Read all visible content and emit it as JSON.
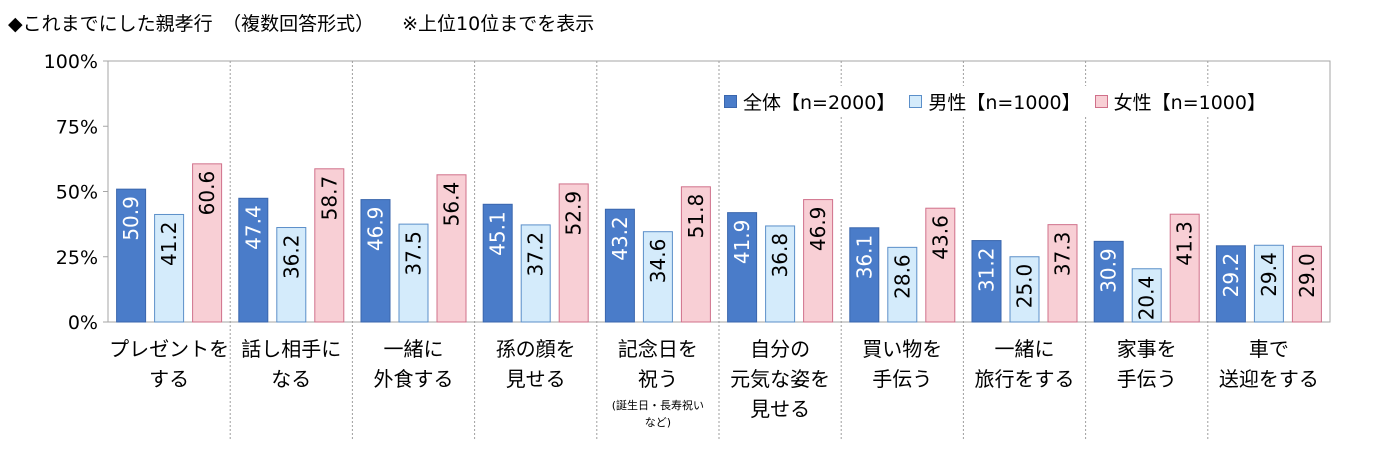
{
  "title": "◆これまでにした親孝行　（複数回答形式）",
  "note": "※上位10位までを表示",
  "chart_data": {
    "type": "bar",
    "categories": [
      [
        "プレゼントを",
        "する"
      ],
      [
        "話し相手に",
        "なる"
      ],
      [
        "一緒に",
        "外食する"
      ],
      [
        "孫の顔を",
        "見せる"
      ],
      [
        "記念日を",
        "祝う"
      ],
      [
        "自分の",
        "元気な姿を",
        "見せる"
      ],
      [
        "買い物を",
        "手伝う"
      ],
      [
        "一緒に",
        "旅行をする"
      ],
      [
        "家事を",
        "手伝う"
      ],
      [
        "車で",
        "送迎をする"
      ]
    ],
    "category_subnote": {
      "index": 4,
      "lines": [
        "(誕生日・長寿祝い",
        "など)"
      ]
    },
    "series": [
      {
        "name": "全体【n=2000】",
        "color": "#4a7cc9",
        "stroke": "#3a66ad",
        "label_color": "#ffffff",
        "values": [
          50.9,
          47.4,
          46.9,
          45.1,
          43.2,
          41.9,
          36.1,
          31.2,
          30.9,
          29.2
        ]
      },
      {
        "name": "男性【n=1000】",
        "color": "#d4ebfb",
        "stroke": "#5b8fc9",
        "label_color": "#000000",
        "values": [
          41.2,
          36.2,
          37.5,
          37.2,
          34.6,
          36.8,
          28.6,
          25.0,
          20.4,
          29.4
        ]
      },
      {
        "name": "女性【n=1000】",
        "color": "#f8cfd5",
        "stroke": "#d0708a",
        "label_color": "#000000",
        "values": [
          60.6,
          58.7,
          56.4,
          52.9,
          51.8,
          46.9,
          43.6,
          37.3,
          41.3,
          29.0
        ]
      }
    ],
    "data_labels": [
      [
        "50.9",
        "47.4",
        "46.9",
        "45.1",
        "43.2",
        "41.9",
        "36.1",
        "31.2",
        "30.9",
        "29.2"
      ],
      [
        "41.2",
        "36.2",
        "37.5",
        "37.2",
        "34.6",
        "36.8",
        "28.6",
        "25.0",
        "20.4",
        "29.4"
      ],
      [
        "60.6",
        "58.7",
        "56.4",
        "52.9",
        "51.8",
        "46.9",
        "43.6",
        "37.3",
        "41.3",
        "29.0"
      ]
    ],
    "yticks": [
      "0%",
      "25%",
      "50%",
      "75%",
      "100%"
    ],
    "ylim": [
      0,
      100
    ],
    "grid": false,
    "legend_position": "top-right"
  }
}
